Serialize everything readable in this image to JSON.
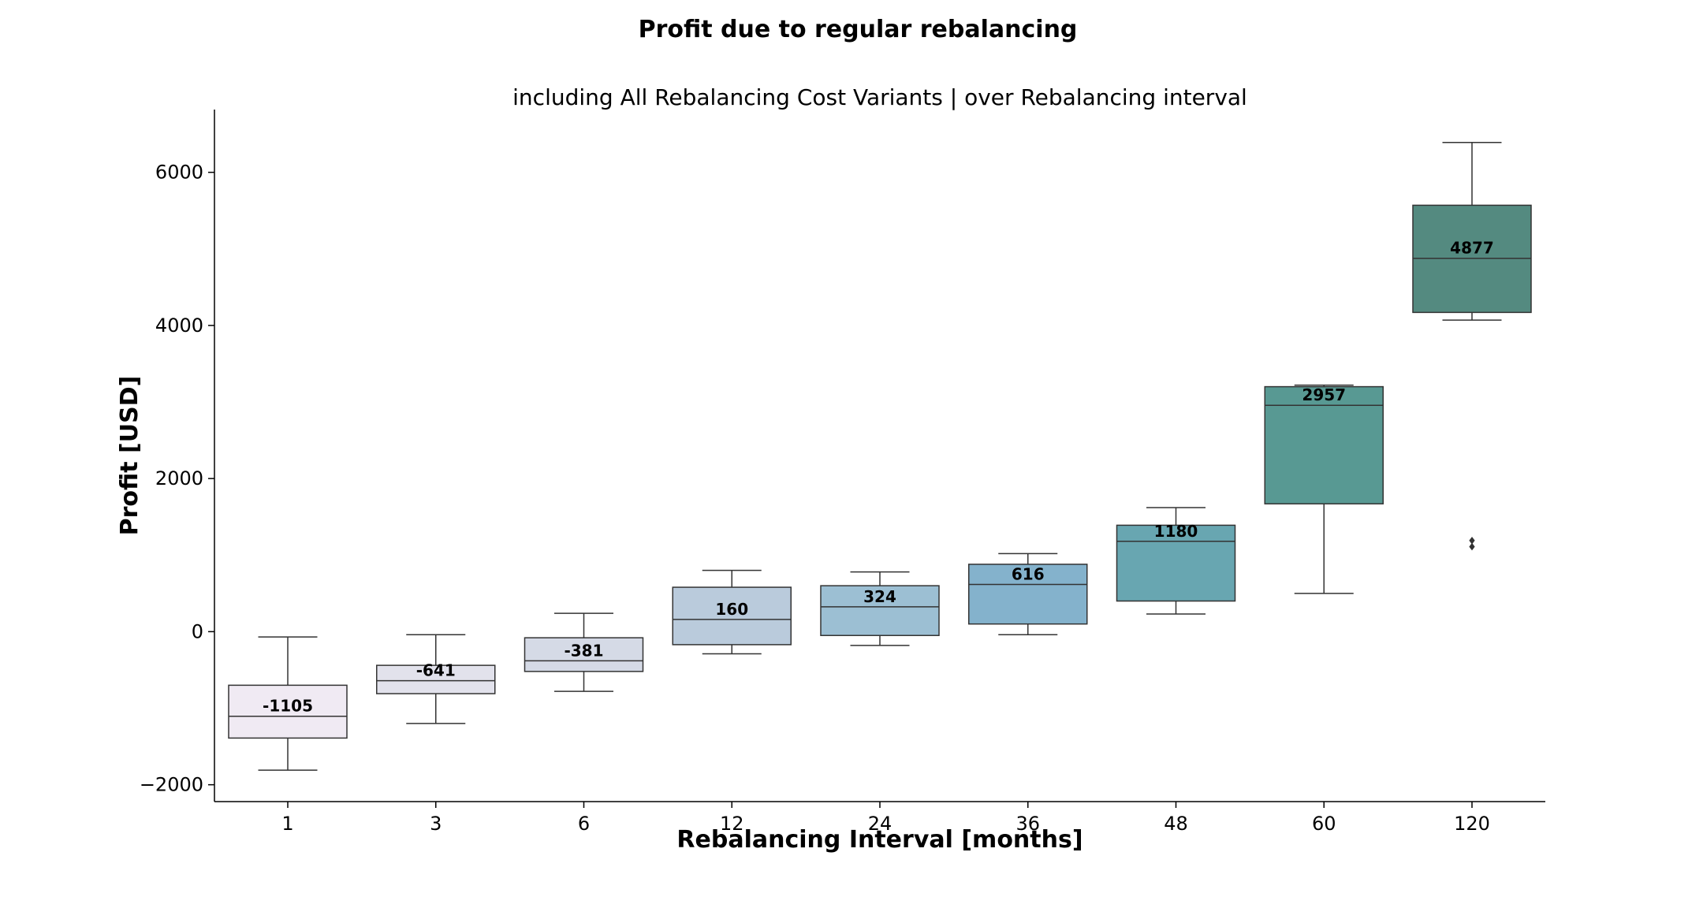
{
  "chart_data": {
    "type": "box",
    "title": "Profit due to regular rebalancing",
    "subtitle": "including All Rebalancing Cost Variants | over Rebalancing interval",
    "xlabel": "Rebalancing Interval [months]",
    "ylabel": "Profit [USD]",
    "ylim": [
      -2220,
      6820
    ],
    "yticks": [
      -2000,
      0,
      2000,
      4000,
      6000
    ],
    "yticks_labels": [
      "−2000",
      "0",
      "2000",
      "4000",
      "6000"
    ],
    "grid": false,
    "categories": [
      "1",
      "3",
      "6",
      "12",
      "24",
      "36",
      "48",
      "60",
      "120"
    ],
    "boxes": [
      {
        "category": "1",
        "whisker_low": -1810,
        "q1": -1390,
        "median": -1105,
        "q3": -700,
        "whisker_high": -70,
        "label": "-1105",
        "color": "#f0eaf3",
        "outliers": []
      },
      {
        "category": "3",
        "whisker_low": -1200,
        "q1": -810,
        "median": -641,
        "q3": -440,
        "whisker_high": -40,
        "label": "-641",
        "color": "#e2e2ec",
        "outliers": []
      },
      {
        "category": "6",
        "whisker_low": -780,
        "q1": -520,
        "median": -381,
        "q3": -80,
        "whisker_high": 240,
        "label": "-381",
        "color": "#d5dae6",
        "outliers": []
      },
      {
        "category": "12",
        "whisker_low": -290,
        "q1": -170,
        "median": 160,
        "q3": 580,
        "whisker_high": 800,
        "label": "160",
        "color": "#bacbdc",
        "outliers": []
      },
      {
        "category": "24",
        "whisker_low": -180,
        "q1": -50,
        "median": 324,
        "q3": 600,
        "whisker_high": 780,
        "label": "324",
        "color": "#9cbfd3",
        "outliers": []
      },
      {
        "category": "36",
        "whisker_low": -40,
        "q1": 100,
        "median": 616,
        "q3": 880,
        "whisker_high": 1020,
        "label": "616",
        "color": "#84b2cc",
        "outliers": []
      },
      {
        "category": "48",
        "whisker_low": 230,
        "q1": 400,
        "median": 1180,
        "q3": 1390,
        "whisker_high": 1620,
        "label": "1180",
        "color": "#68a6b1",
        "outliers": []
      },
      {
        "category": "60",
        "whisker_low": 500,
        "q1": 1670,
        "median": 2957,
        "q3": 3200,
        "whisker_high": 3220,
        "label": "2957",
        "color": "#589993",
        "outliers": []
      },
      {
        "category": "120",
        "whisker_low": 4070,
        "q1": 4170,
        "median": 4877,
        "q3": 5570,
        "whisker_high": 6390,
        "label": "4877",
        "color": "#548a80",
        "outliers": [
          1110,
          1190
        ]
      }
    ]
  }
}
